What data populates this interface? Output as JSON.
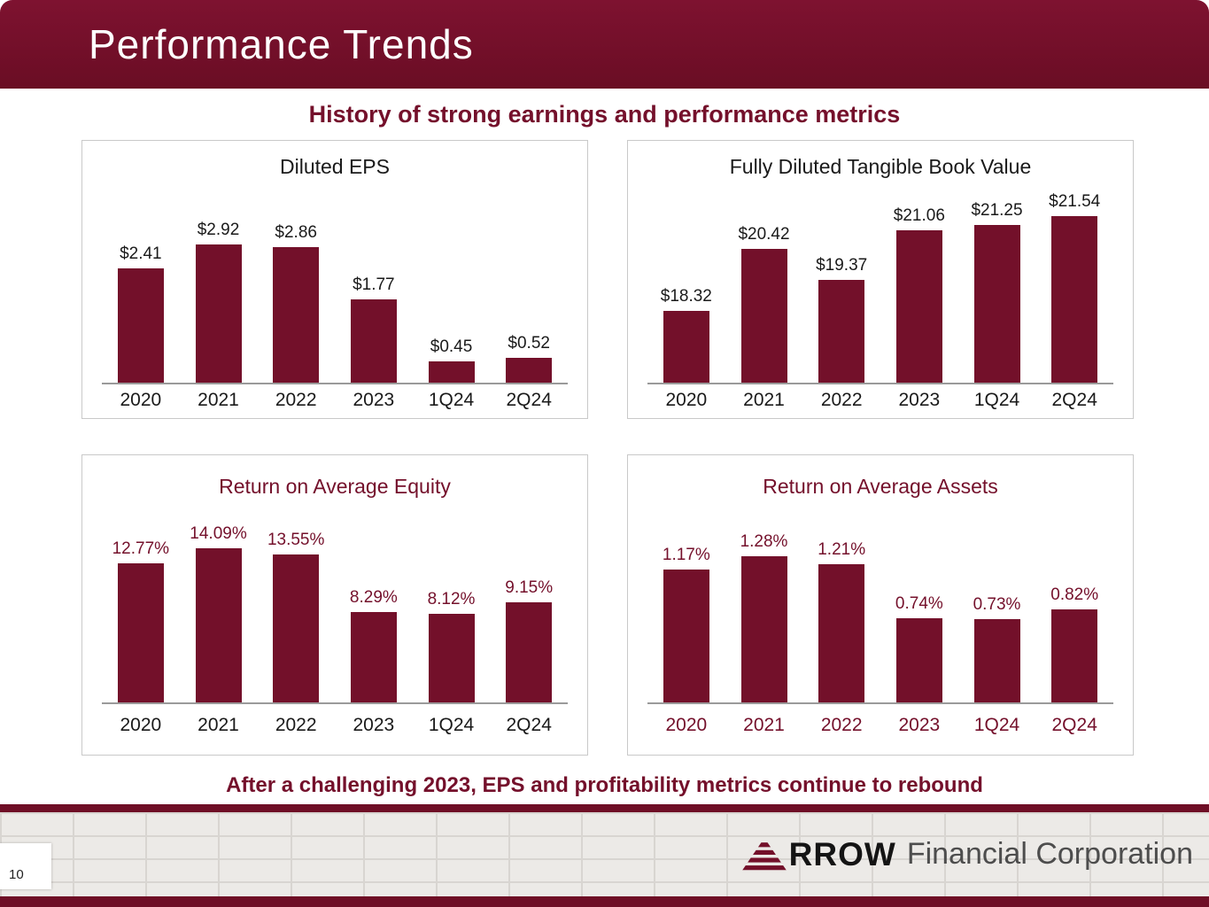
{
  "header": {
    "title": "Performance Trends"
  },
  "subtitle": "History of strong earnings and performance metrics",
  "footnote": "After a challenging 2023, EPS and profitability metrics continue to rebound",
  "footer": {
    "page_number": "10",
    "logo_brand": "RROW",
    "logo_secondary": "Financial Corporation"
  },
  "colors": {
    "maroon": "#73102a",
    "header_bg": "#6f0e26",
    "bar": "#73102a"
  },
  "chart_data": [
    {
      "type": "bar",
      "title": "Diluted EPS",
      "categories": [
        "2020",
        "2021",
        "2022",
        "2023",
        "1Q24",
        "2Q24"
      ],
      "values": [
        2.41,
        2.92,
        2.86,
        1.77,
        0.45,
        0.52
      ],
      "labels": [
        "$2.41",
        "$2.92",
        "$2.86",
        "$1.77",
        "$0.45",
        "$0.52"
      ],
      "ylim": [
        0,
        3.0
      ],
      "grid": false,
      "legend": "none"
    },
    {
      "type": "bar",
      "title": "Fully Diluted Tangible Book Value",
      "categories": [
        "2020",
        "2021",
        "2022",
        "2023",
        "1Q24",
        "2Q24"
      ],
      "values": [
        18.32,
        20.42,
        19.37,
        21.06,
        21.25,
        21.54
      ],
      "labels": [
        "$18.32",
        "$20.42",
        "$19.37",
        "$21.06",
        "$21.25",
        "$21.54"
      ],
      "ylim": [
        15.9,
        21.6
      ],
      "grid": false,
      "legend": "none"
    },
    {
      "type": "bar",
      "title": "Return on Average Equity",
      "categories": [
        "2020",
        "2021",
        "2022",
        "2023",
        "1Q24",
        "2Q24"
      ],
      "values": [
        12.77,
        14.09,
        13.55,
        8.29,
        8.12,
        9.15
      ],
      "labels": [
        "12.77%",
        "14.09%",
        "13.55%",
        "8.29%",
        "8.12%",
        "9.15%"
      ],
      "ylim": [
        0,
        15
      ],
      "grid": false,
      "legend": "none"
    },
    {
      "type": "bar",
      "title": "Return on Average Assets",
      "categories": [
        "2020",
        "2021",
        "2022",
        "2023",
        "1Q24",
        "2Q24"
      ],
      "values": [
        1.17,
        1.28,
        1.21,
        0.74,
        0.73,
        0.82
      ],
      "labels": [
        "1.17%",
        "1.28%",
        "1.21%",
        "0.74%",
        "0.73%",
        "0.82%"
      ],
      "ylim": [
        0,
        1.4
      ],
      "grid": false,
      "legend": "none"
    }
  ]
}
